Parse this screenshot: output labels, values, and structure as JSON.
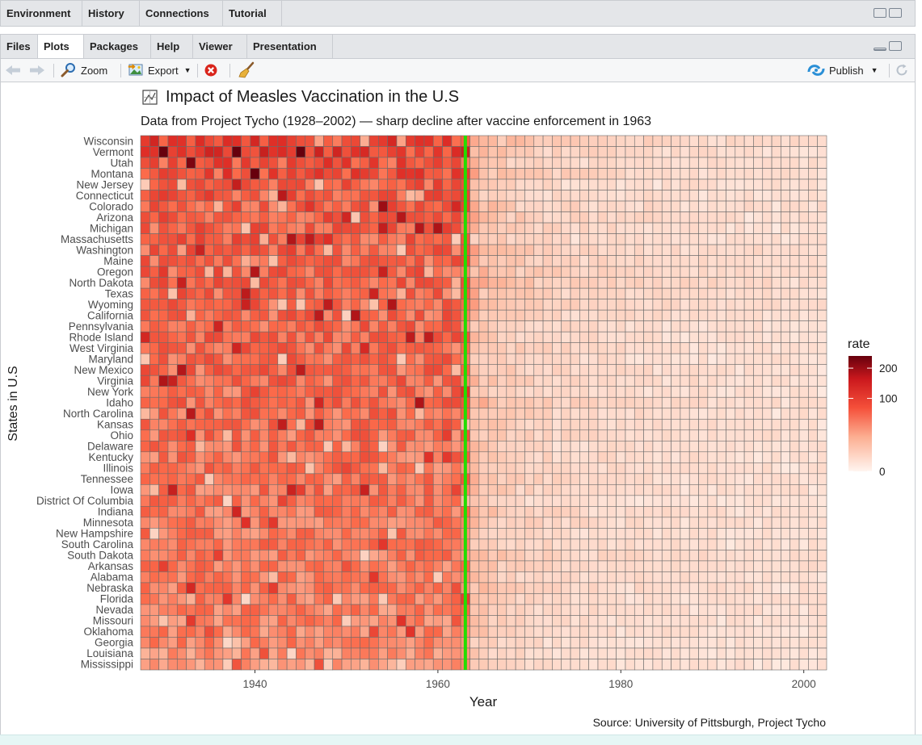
{
  "top_tabs": [
    "Environment",
    "History",
    "Connections",
    "Tutorial"
  ],
  "bottom_tabs": [
    "Files",
    "Plots",
    "Packages",
    "Help",
    "Viewer",
    "Presentation"
  ],
  "active_bottom_tab": "Plots",
  "toolbar": {
    "zoom_label": "Zoom",
    "export_label": "Export",
    "publish_label": "Publish"
  },
  "colors": {
    "heat_low": "#fff5f0",
    "heat_mid": "#ef3b2c",
    "heat_high": "#67000d",
    "vaccine_line": "#22dd00",
    "tile_border": "#6b6b6b"
  },
  "chart_data": {
    "type": "heatmap",
    "title": "Impact of Measles Vaccination in the U.S",
    "subtitle": "Data from Project Tycho (1928–2002) — sharp decline after vaccine enforcement in 1963",
    "xlabel": "Year",
    "ylabel": "States in U.S",
    "caption": "Source: University of Pittsburgh, Project Tycho",
    "legend_title": "rate",
    "legend_ticks": [
      200,
      100,
      0
    ],
    "legend_placement": "right",
    "x_range": [
      1928,
      2002
    ],
    "x_ticks": [
      1940,
      1960,
      1980,
      2000
    ],
    "vaccine_year": 1963,
    "color_scale_max": 250,
    "states": [
      "Wisconsin",
      "Vermont",
      "Utah",
      "Montana",
      "New Jersey",
      "Connecticut",
      "Colorado",
      "Arizona",
      "Michigan",
      "Massachusetts",
      "Washington",
      "Maine",
      "Oregon",
      "North Dakota",
      "Texas",
      "Wyoming",
      "California",
      "Pennsylvania",
      "Rhode Island",
      "West Virginia",
      "Maryland",
      "New Mexico",
      "Virginia",
      "New York",
      "Idaho",
      "North Carolina",
      "Kansas",
      "Ohio",
      "Delaware",
      "Kentucky",
      "Illinois",
      "Tennessee",
      "Iowa",
      "District Of Columbia",
      "Indiana",
      "Minnesota",
      "New Hampshire",
      "South Carolina",
      "South Dakota",
      "Arkansas",
      "Alabama",
      "Nebraska",
      "Florida",
      "Nevada",
      "Missouri",
      "Oklahoma",
      "Georgia",
      "Louisiana",
      "Mississippi"
    ],
    "pre_vaccine_level": [
      110,
      120,
      100,
      100,
      85,
      85,
      80,
      80,
      80,
      80,
      80,
      78,
      75,
      75,
      75,
      72,
      72,
      72,
      72,
      70,
      70,
      70,
      70,
      68,
      68,
      66,
      65,
      62,
      62,
      60,
      58,
      57,
      57,
      55,
      55,
      55,
      55,
      55,
      52,
      52,
      52,
      50,
      48,
      48,
      46,
      45,
      45,
      35,
      30
    ],
    "post_vaccine_level": [
      8,
      5,
      4,
      6,
      3,
      3,
      5,
      5,
      4,
      3,
      6,
      5,
      6,
      7,
      5,
      6,
      4,
      3,
      3,
      4,
      3,
      4,
      4,
      3,
      6,
      4,
      4,
      4,
      3,
      4,
      3,
      4,
      4,
      2,
      4,
      4,
      3,
      3,
      5,
      4,
      3,
      4,
      3,
      3,
      3,
      3,
      2,
      2,
      2
    ]
  }
}
